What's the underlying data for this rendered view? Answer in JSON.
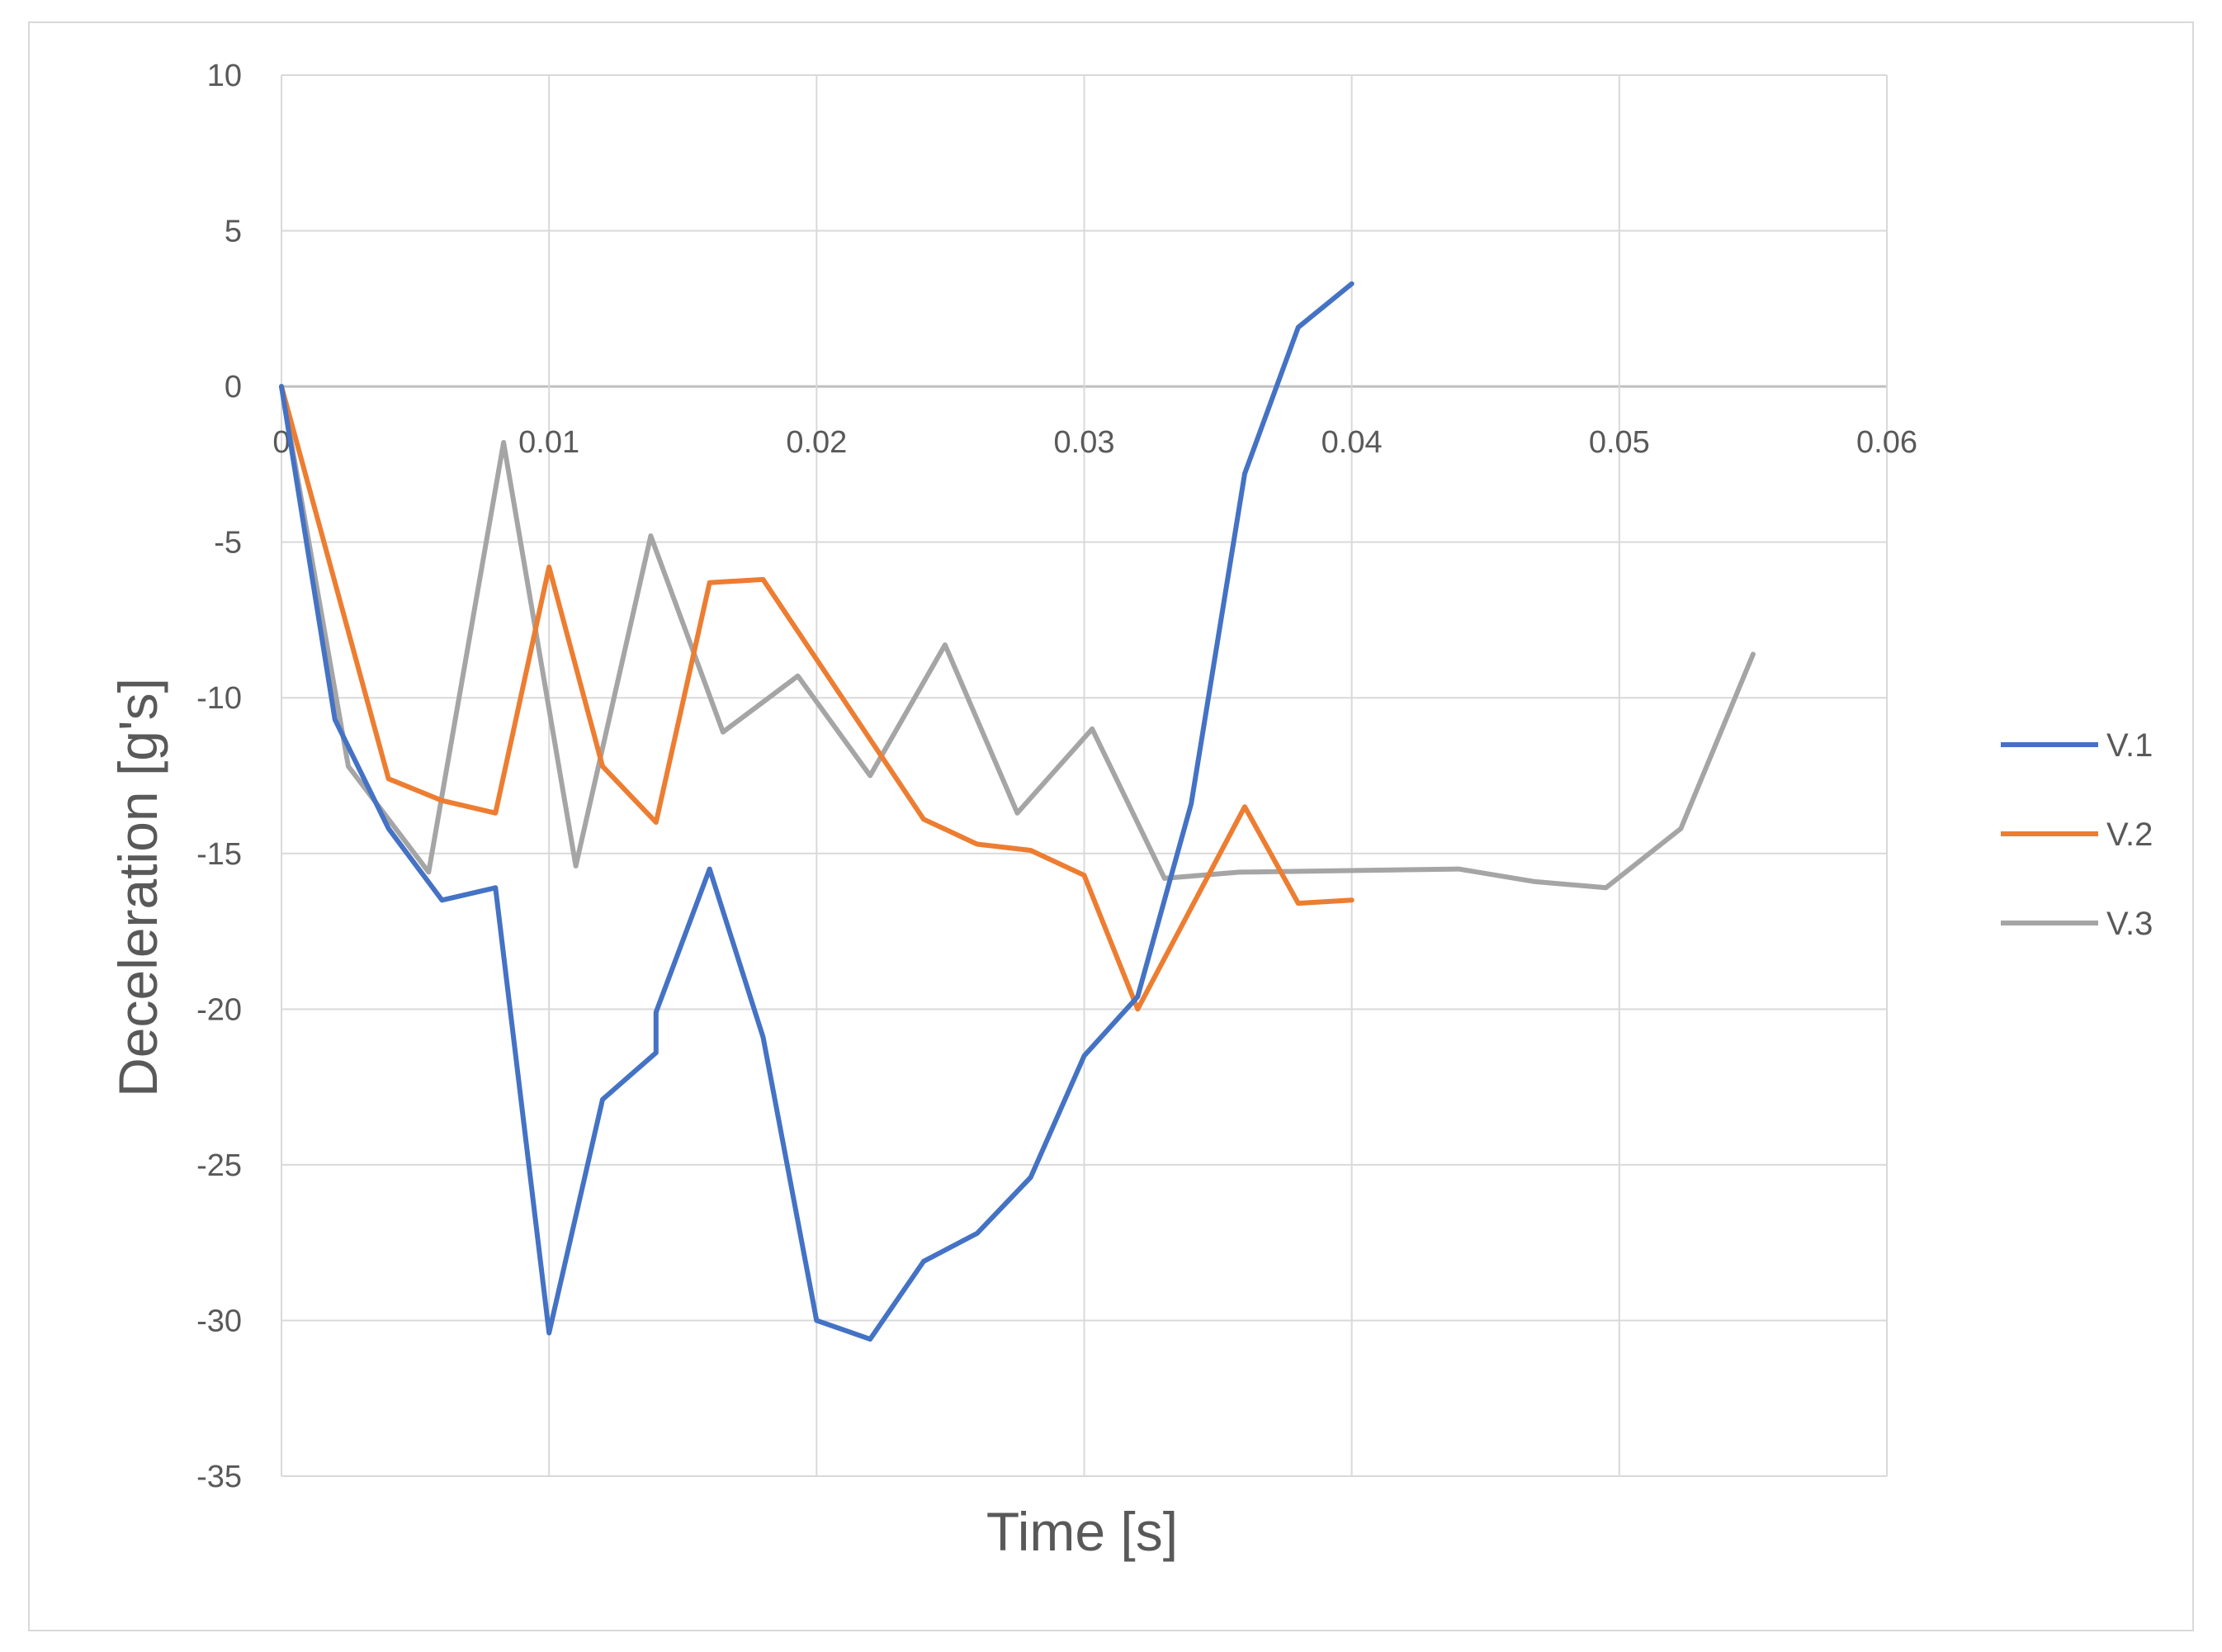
{
  "chart_data": {
    "type": "line",
    "title": "",
    "xlabel": "Time [s]",
    "ylabel": "Deceleration [g's]",
    "xlim": [
      0,
      0.06
    ],
    "ylim": [
      -35,
      10
    ],
    "x_ticks": [
      "0",
      "0.01",
      "0.02",
      "0.03",
      "0.04",
      "0.05",
      "0.06"
    ],
    "y_ticks": [
      "10",
      "5",
      "0",
      "-5",
      "-10",
      "-15",
      "-20",
      "-25",
      "-30",
      "-35"
    ],
    "grid": true,
    "legend_position": "right",
    "series": [
      {
        "name": "V.1",
        "color": "#4472c4",
        "points": [
          [
            0,
            0
          ],
          [
            0.002,
            -10.7
          ],
          [
            0.004,
            -14.2
          ],
          [
            0.006,
            -16.5
          ],
          [
            0.008,
            -16.1
          ],
          [
            0.01,
            -30.4
          ],
          [
            0.012,
            -22.9
          ],
          [
            0.014,
            -21.4
          ],
          [
            0.014,
            -20.1
          ],
          [
            0.016,
            -15.5
          ],
          [
            0.018,
            -20.9
          ],
          [
            0.02,
            -30.0
          ],
          [
            0.022,
            -30.6
          ],
          [
            0.024,
            -28.1
          ],
          [
            0.026,
            -27.2
          ],
          [
            0.028,
            -25.4
          ],
          [
            0.03,
            -21.5
          ],
          [
            0.032,
            -19.6
          ],
          [
            0.034,
            -13.4
          ],
          [
            0.036,
            -2.8
          ],
          [
            0.038,
            1.9
          ],
          [
            0.04,
            3.3
          ]
        ]
      },
      {
        "name": "V.2",
        "color": "#ed7d31",
        "points": [
          [
            0,
            0
          ],
          [
            0.004,
            -12.6
          ],
          [
            0.006,
            -13.3
          ],
          [
            0.008,
            -13.7
          ],
          [
            0.01,
            -5.8
          ],
          [
            0.012,
            -12.2
          ],
          [
            0.014,
            -14.0
          ],
          [
            0.016,
            -6.3
          ],
          [
            0.018,
            -6.2
          ],
          [
            0.024,
            -13.9
          ],
          [
            0.026,
            -14.7
          ],
          [
            0.028,
            -14.9
          ],
          [
            0.03,
            -15.7
          ],
          [
            0.032,
            -20.0
          ],
          [
            0.036,
            -13.5
          ],
          [
            0.038,
            -16.6
          ],
          [
            0.04,
            -16.5
          ]
        ]
      },
      {
        "name": "V.3",
        "color": "#a5a5a5",
        "points": [
          [
            0,
            0
          ],
          [
            0.0025,
            -12.2
          ],
          [
            0.0055,
            -15.6
          ],
          [
            0.0083,
            -1.8
          ],
          [
            0.011,
            -15.4
          ],
          [
            0.0138,
            -4.8
          ],
          [
            0.0165,
            -11.1
          ],
          [
            0.0193,
            -9.3
          ],
          [
            0.022,
            -12.5
          ],
          [
            0.0248,
            -8.3
          ],
          [
            0.0275,
            -13.7
          ],
          [
            0.0303,
            -11.0
          ],
          [
            0.033,
            -15.8
          ],
          [
            0.0358,
            -15.6
          ],
          [
            0.044,
            -15.5
          ],
          [
            0.0468,
            -15.9
          ],
          [
            0.0495,
            -16.1
          ],
          [
            0.0523,
            -14.2
          ],
          [
            0.055,
            -8.6
          ]
        ]
      }
    ]
  }
}
